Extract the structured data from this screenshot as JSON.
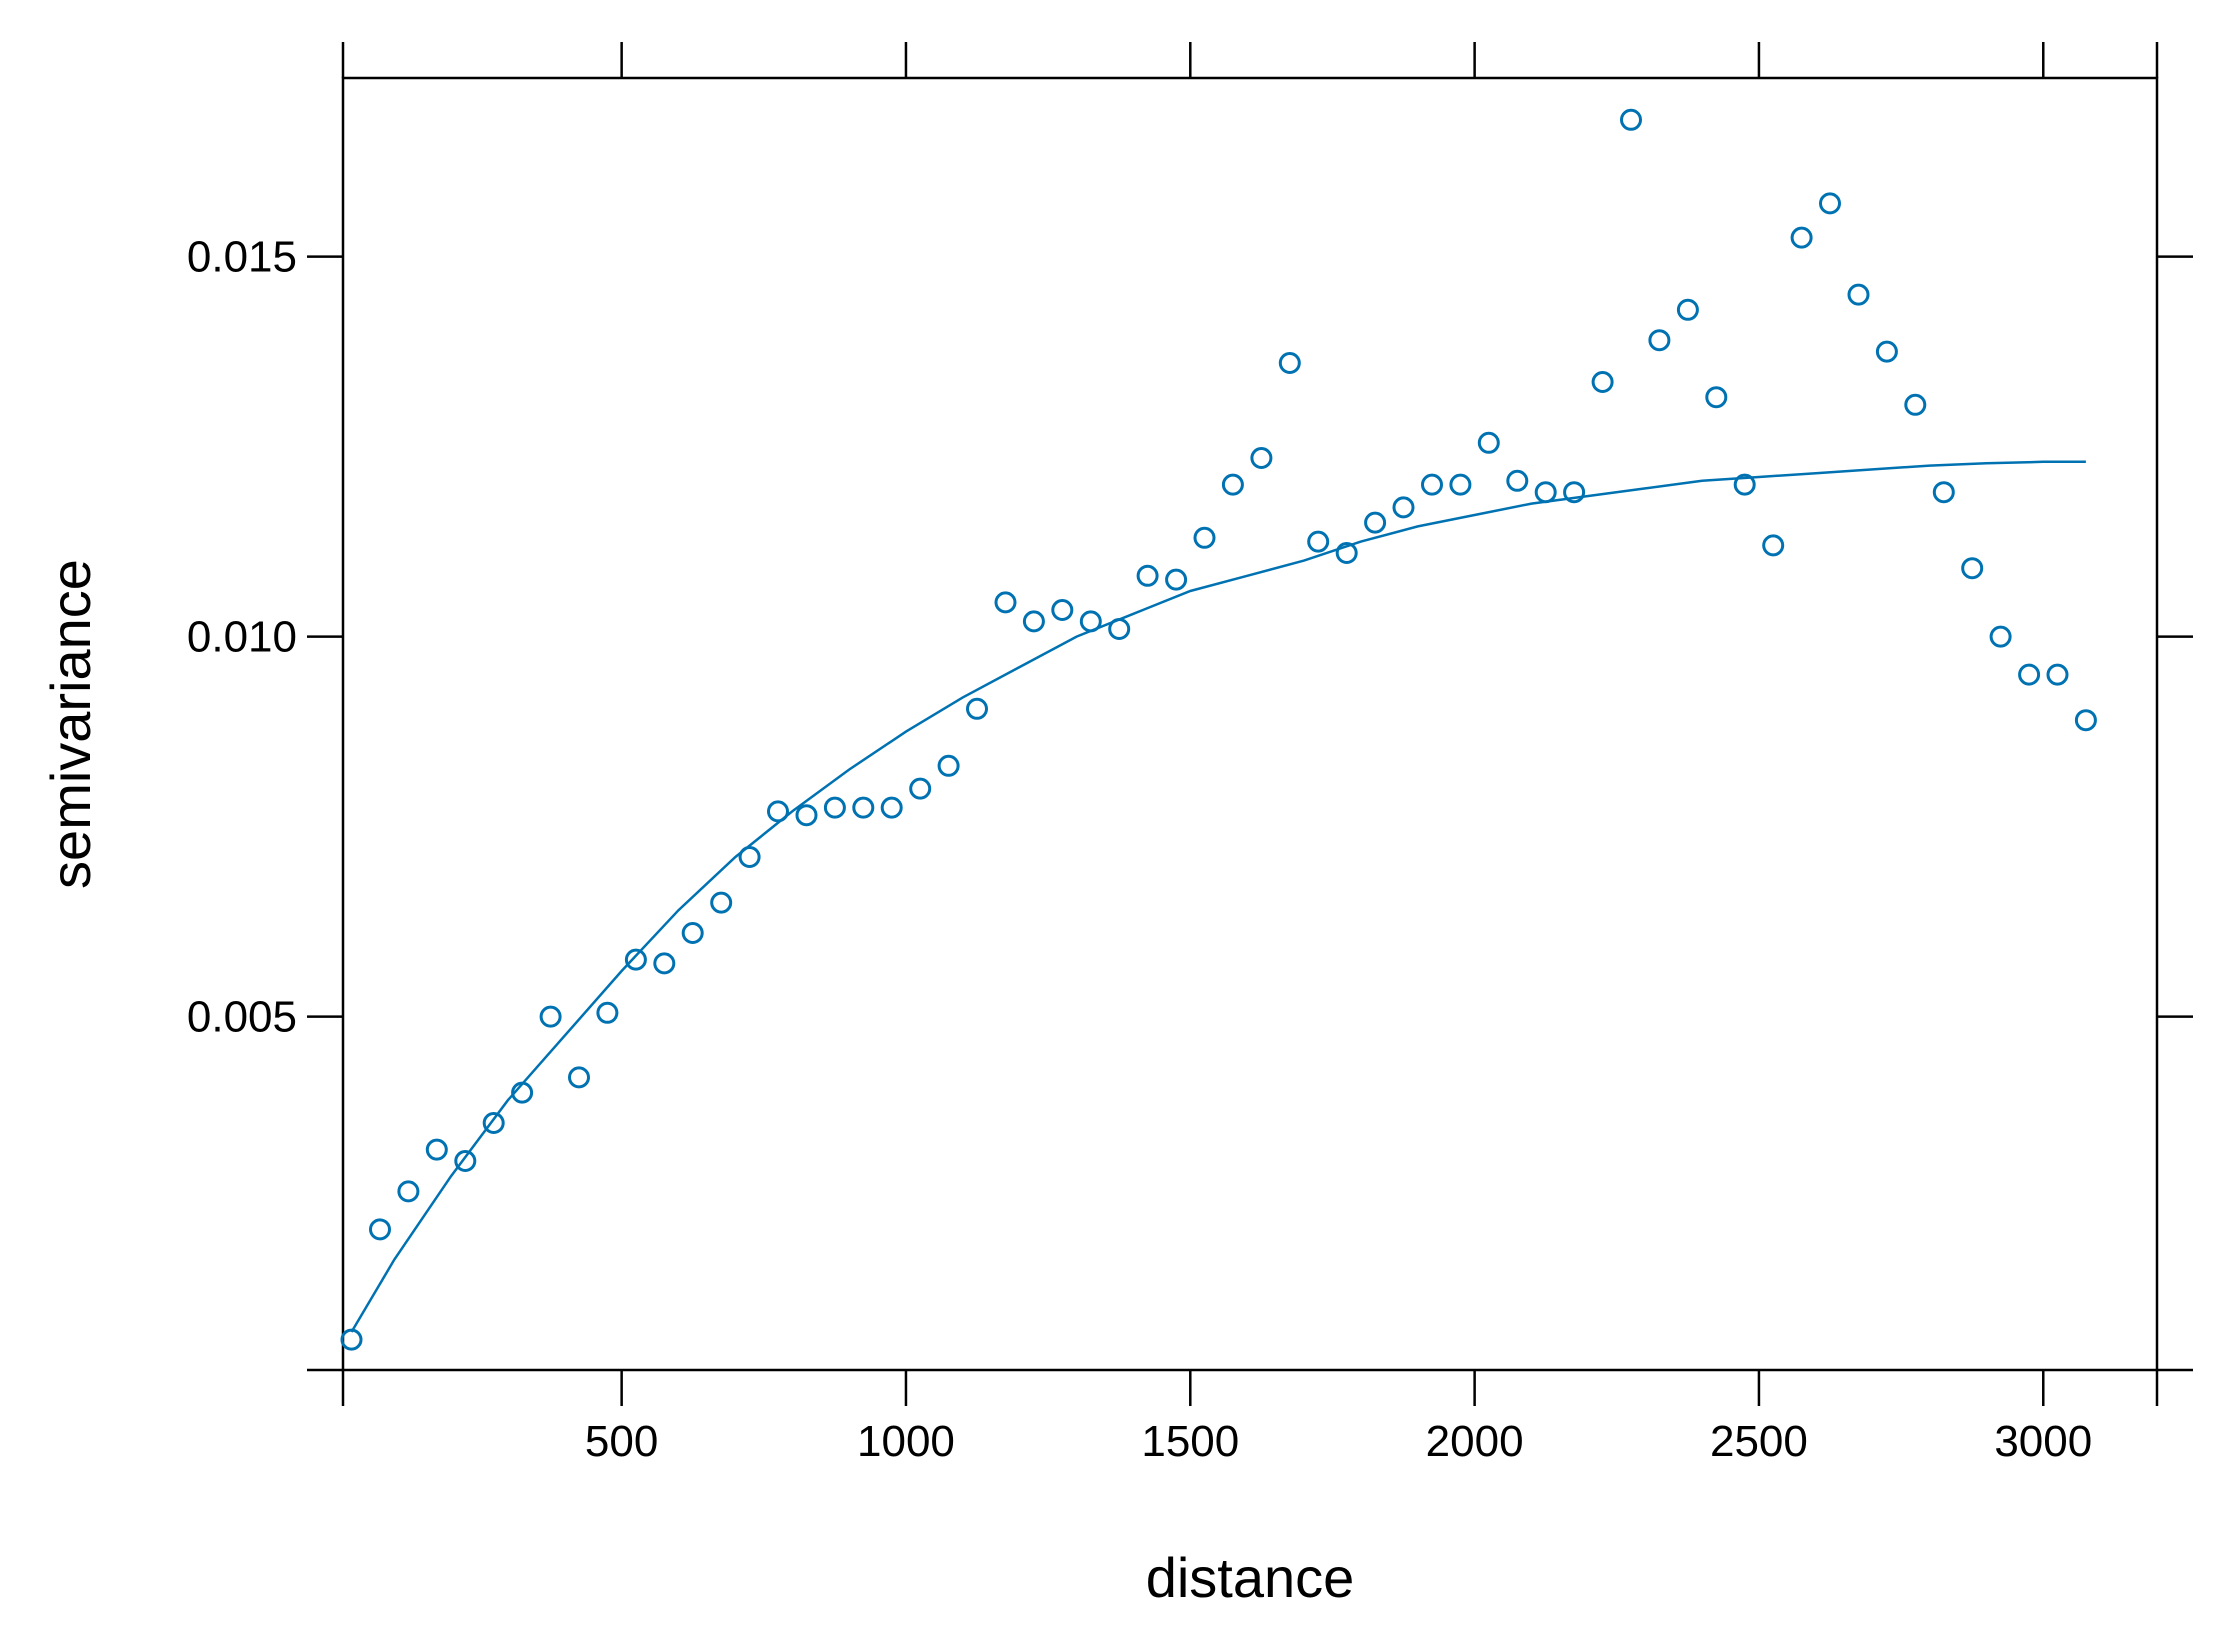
{
  "chart_data": {
    "type": "scatter",
    "title": "",
    "xlabel": "distance",
    "ylabel": "semivariance",
    "xlim": [
      10,
      3200
    ],
    "ylim": [
      0.00035,
      0.01735
    ],
    "x_ticks": [
      500,
      1000,
      1500,
      2000,
      2500,
      3000
    ],
    "x_tick_labels": [
      "500",
      "1000",
      "1500",
      "2000",
      "2500",
      "3000"
    ],
    "y_ticks": [
      0.005,
      0.01,
      0.015
    ],
    "y_tick_labels": [
      "0.005",
      "0.010",
      "0.015"
    ],
    "grid": false,
    "legend": "none",
    "colors": {
      "points": "#0072B2",
      "fit": "#0072B2",
      "axes": "#000000"
    },
    "series": [
      {
        "kind": "points",
        "marker": "open-circle",
        "x": [
          25,
          75,
          125,
          175,
          225,
          275,
          325,
          375,
          425,
          475,
          525,
          575,
          625,
          675,
          725,
          775,
          825,
          875,
          925,
          975,
          1025,
          1075,
          1125,
          1175,
          1225,
          1275,
          1325,
          1375,
          1425,
          1475,
          1525,
          1575,
          1625,
          1675,
          1725,
          1775,
          1825,
          1875,
          1925,
          1975,
          2025,
          2075,
          2125,
          2175,
          2225,
          2275,
          2325,
          2375,
          2425,
          2475,
          2525,
          2575,
          2625,
          2675,
          2725,
          2775,
          2825,
          2875,
          2925,
          2975,
          3025,
          3075
        ],
        "y": [
          0.00075,
          0.0022,
          0.0027,
          0.00325,
          0.0031,
          0.0036,
          0.004,
          0.005,
          0.0042,
          0.00505,
          0.00575,
          0.0057,
          0.0061,
          0.0065,
          0.0071,
          0.0077,
          0.00765,
          0.00775,
          0.00775,
          0.00775,
          0.008,
          0.0083,
          0.00905,
          0.01045,
          0.0102,
          0.01035,
          0.0102,
          0.0101,
          0.0108,
          0.01075,
          0.0113,
          0.012,
          0.01235,
          0.0136,
          0.01125,
          0.0111,
          0.0115,
          0.0117,
          0.012,
          0.012,
          0.01255,
          0.01205,
          0.0119,
          0.0119,
          0.01335,
          0.0168,
          0.0139,
          0.0143,
          0.01315,
          0.012,
          0.0112,
          0.01525,
          0.0157,
          0.0145,
          0.01375,
          0.01305,
          0.0119,
          0.0109,
          0.01,
          0.0095,
          0.0095,
          0.0089
        ]
      },
      {
        "kind": "fitted-line",
        "x": [
          25,
          100,
          200,
          300,
          400,
          500,
          600,
          700,
          800,
          900,
          1000,
          1100,
          1200,
          1300,
          1400,
          1500,
          1600,
          1700,
          1800,
          1900,
          2000,
          2100,
          2200,
          2300,
          2400,
          2500,
          2600,
          2700,
          2800,
          2900,
          3000,
          3075
        ],
        "y": [
          0.00085,
          0.0018,
          0.0029,
          0.0039,
          0.00475,
          0.0056,
          0.0064,
          0.0071,
          0.0077,
          0.00825,
          0.00875,
          0.0092,
          0.0096,
          0.01,
          0.0103,
          0.0106,
          0.0108,
          0.011,
          0.01125,
          0.01145,
          0.0116,
          0.01175,
          0.01185,
          0.01195,
          0.01205,
          0.0121,
          0.01215,
          0.0122,
          0.01225,
          0.01228,
          0.0123,
          0.0123
        ]
      }
    ]
  }
}
